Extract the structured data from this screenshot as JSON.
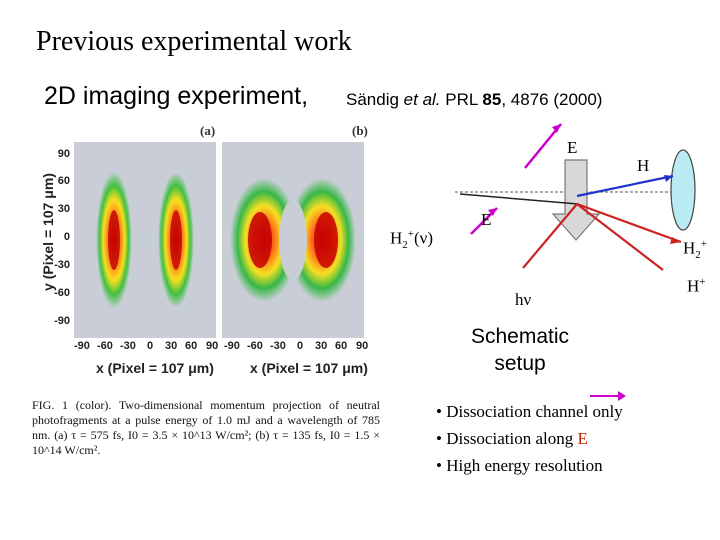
{
  "slide": {
    "title": "Previous experimental work",
    "subtitle": "2D imaging experiment,",
    "citation": {
      "authors": "Sändig ",
      "etal": "et al.",
      "journal": " PRL ",
      "volume": "85",
      "pages": ", 4876 (2000)"
    }
  },
  "figure": {
    "panel_a_label": "(a)",
    "panel_b_label": "(b)",
    "y_axis_title": "y (Pixel = 107 μm)",
    "y_ticks": [
      "90",
      "60",
      "30",
      "0",
      "-30",
      "-60",
      "-90"
    ],
    "x_ticks_a": [
      "-90",
      "-60",
      "-30",
      "0",
      "30",
      "60",
      "90"
    ],
    "x_ticks_b": [
      "-90",
      "-60",
      "-30",
      "0",
      "30",
      "60",
      "90"
    ],
    "x_axis_title_a": "x (Pixel = 107 μm)",
    "x_axis_title_b": "x (Pixel = 107 μm)",
    "caption": "FIG. 1 (color). Two-dimensional momentum projection of neutral photofragments at a pulse energy of 1.0 mJ and a wavelength of 785 nm. (a) τ = 575 fs, I0 = 3.5 × 10^13 W/cm²; (b) τ = 135 fs, I0 = 1.5 × 10^14 W/cm²."
  },
  "schematic": {
    "label_E_top": "E",
    "label_H": "H",
    "label_E_mid": "E",
    "label_H2plus_nu_main": "H",
    "label_H2plus_nu_sub": "2",
    "label_H2plus_nu_sup": "+",
    "label_H2plus_nu_tail": "(ν)",
    "label_H2plus_main": "H",
    "label_H2plus_sub": "2",
    "label_H2plus_sup": "+",
    "label_Hplus_main": "H",
    "label_Hplus_sup": "+",
    "label_hnu": "hν",
    "caption_line1": "Schematic",
    "caption_line2": "setup",
    "colors": {
      "e_field": "#cc00cc",
      "h_beam": "#2233cc",
      "ion_beam": "#cc2222",
      "detector": "#b8ecf2",
      "laser": "#d8d8d8"
    }
  },
  "bullets": {
    "b1": "• Dissociation channel only",
    "b2_prefix": "• Dissociation along ",
    "b2_e": "E",
    "b3": "• High energy resolution"
  }
}
